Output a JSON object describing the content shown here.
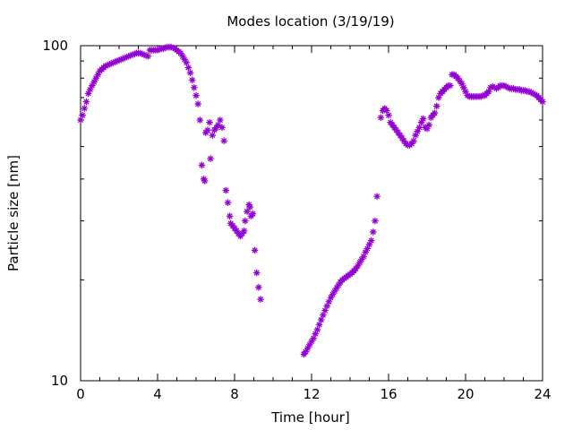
{
  "chart_data": {
    "type": "scatter",
    "title": "Modes location (3/19/19)",
    "xlabel": "Time [hour]",
    "ylabel": "Particle size [nm]",
    "xlim": [
      0,
      24
    ],
    "ylim": [
      10,
      100
    ],
    "yscale": "log",
    "grid": false,
    "legend": "none",
    "x_ticks": [
      {
        "value": 0,
        "label": "0"
      },
      {
        "value": 4,
        "label": "4"
      },
      {
        "value": 8,
        "label": "8"
      },
      {
        "value": 12,
        "label": "12"
      },
      {
        "value": 16,
        "label": "16"
      },
      {
        "value": 20,
        "label": "20"
      },
      {
        "value": 24,
        "label": "24"
      }
    ],
    "y_ticks": [
      {
        "value": 10,
        "label": "10"
      },
      {
        "value": 100,
        "label": "100"
      }
    ],
    "y_minor_ticks": [
      20,
      30,
      40,
      50,
      60,
      70,
      80,
      90
    ],
    "marker_color": "#9400d3",
    "series": [
      {
        "points": [
          [
            0.0,
            60
          ],
          [
            0.1,
            62
          ],
          [
            0.2,
            65
          ],
          [
            0.3,
            68
          ],
          [
            0.4,
            72
          ],
          [
            0.5,
            74
          ],
          [
            0.6,
            76
          ],
          [
            0.7,
            78
          ],
          [
            0.8,
            80
          ],
          [
            0.9,
            82
          ],
          [
            1.0,
            84
          ],
          [
            1.1,
            85
          ],
          [
            1.2,
            86
          ],
          [
            1.3,
            87
          ],
          [
            1.4,
            87.5
          ],
          [
            1.5,
            88
          ],
          [
            1.6,
            88.5
          ],
          [
            1.7,
            89
          ],
          [
            1.8,
            89.5
          ],
          [
            1.9,
            90
          ],
          [
            2.0,
            90.5
          ],
          [
            2.1,
            91
          ],
          [
            2.2,
            91.5
          ],
          [
            2.3,
            92
          ],
          [
            2.4,
            92.5
          ],
          [
            2.5,
            93
          ],
          [
            2.6,
            93.5
          ],
          [
            2.7,
            94
          ],
          [
            2.8,
            94.5
          ],
          [
            2.9,
            95
          ],
          [
            3.0,
            95
          ],
          [
            3.1,
            95
          ],
          [
            3.2,
            94.5
          ],
          [
            3.3,
            94
          ],
          [
            3.4,
            93.5
          ],
          [
            3.5,
            93
          ],
          [
            3.6,
            97
          ],
          [
            3.7,
            97
          ],
          [
            3.8,
            97
          ],
          [
            3.9,
            97
          ],
          [
            4.0,
            97
          ],
          [
            4.1,
            97.5
          ],
          [
            4.2,
            98
          ],
          [
            4.3,
            98
          ],
          [
            4.4,
            98.5
          ],
          [
            4.5,
            99
          ],
          [
            4.6,
            99
          ],
          [
            4.7,
            99
          ],
          [
            4.8,
            98.5
          ],
          [
            4.9,
            98
          ],
          [
            5.0,
            97
          ],
          [
            5.1,
            96
          ],
          [
            5.2,
            95
          ],
          [
            5.3,
            93
          ],
          [
            5.4,
            91
          ],
          [
            5.5,
            89
          ],
          [
            5.6,
            86
          ],
          [
            5.7,
            83
          ],
          [
            5.8,
            79
          ],
          [
            5.9,
            75
          ],
          [
            6.0,
            71
          ],
          [
            6.1,
            67
          ],
          [
            6.2,
            60
          ],
          [
            6.3,
            44
          ],
          [
            6.4,
            40
          ],
          [
            6.45,
            39.5
          ],
          [
            6.5,
            55
          ],
          [
            6.6,
            56
          ],
          [
            6.7,
            59
          ],
          [
            6.75,
            46
          ],
          [
            6.85,
            54
          ],
          [
            6.95,
            56
          ],
          [
            7.05,
            57
          ],
          [
            7.15,
            58
          ],
          [
            7.25,
            60
          ],
          [
            7.35,
            57
          ],
          [
            7.45,
            52
          ],
          [
            7.55,
            37
          ],
          [
            7.65,
            34
          ],
          [
            7.75,
            31
          ],
          [
            7.8,
            29.5
          ],
          [
            7.9,
            29
          ],
          [
            8.0,
            28.5
          ],
          [
            8.1,
            28
          ],
          [
            8.2,
            27.5
          ],
          [
            8.3,
            27
          ],
          [
            8.4,
            27.5
          ],
          [
            8.5,
            28
          ],
          [
            8.55,
            30
          ],
          [
            8.65,
            32
          ],
          [
            8.75,
            33.5
          ],
          [
            8.8,
            33
          ],
          [
            8.85,
            31
          ],
          [
            8.95,
            31.5
          ],
          [
            9.05,
            24.5
          ],
          [
            9.15,
            21
          ],
          [
            9.25,
            19
          ],
          [
            9.35,
            17.5
          ],
          [
            11.6,
            12
          ],
          [
            11.7,
            12.2
          ],
          [
            11.8,
            12.5
          ],
          [
            11.9,
            12.8
          ],
          [
            12.0,
            13.1
          ],
          [
            12.1,
            13.4
          ],
          [
            12.2,
            13.8
          ],
          [
            12.3,
            14.2
          ],
          [
            12.4,
            14.7
          ],
          [
            12.5,
            15.2
          ],
          [
            12.6,
            15.7
          ],
          [
            12.7,
            16.2
          ],
          [
            12.8,
            16.7
          ],
          [
            12.9,
            17.2
          ],
          [
            13.0,
            17.7
          ],
          [
            13.1,
            18.1
          ],
          [
            13.2,
            18.5
          ],
          [
            13.3,
            18.9
          ],
          [
            13.4,
            19.3
          ],
          [
            13.5,
            19.7
          ],
          [
            13.6,
            20
          ],
          [
            13.7,
            20.2
          ],
          [
            13.8,
            20.4
          ],
          [
            13.9,
            20.6
          ],
          [
            14.0,
            20.8
          ],
          [
            14.1,
            21
          ],
          [
            14.2,
            21.3
          ],
          [
            14.3,
            21.6
          ],
          [
            14.4,
            22
          ],
          [
            14.5,
            22.5
          ],
          [
            14.6,
            23
          ],
          [
            14.7,
            23.5
          ],
          [
            14.8,
            24.2
          ],
          [
            14.9,
            24.8
          ],
          [
            15.0,
            25.5
          ],
          [
            15.1,
            26.2
          ],
          [
            15.2,
            27.8
          ],
          [
            15.3,
            30
          ],
          [
            15.4,
            35.5
          ],
          [
            15.6,
            61
          ],
          [
            15.7,
            64
          ],
          [
            15.8,
            65
          ],
          [
            15.9,
            64
          ],
          [
            16.0,
            62
          ],
          [
            16.1,
            59
          ],
          [
            16.2,
            58
          ],
          [
            16.3,
            57
          ],
          [
            16.4,
            56
          ],
          [
            16.5,
            55
          ],
          [
            16.6,
            54
          ],
          [
            16.7,
            53
          ],
          [
            16.8,
            52
          ],
          [
            16.9,
            51
          ],
          [
            17.0,
            50.5
          ],
          [
            17.1,
            50.5
          ],
          [
            17.2,
            51
          ],
          [
            17.3,
            52
          ],
          [
            17.4,
            54
          ],
          [
            17.5,
            55.5
          ],
          [
            17.6,
            57
          ],
          [
            17.7,
            59
          ],
          [
            17.8,
            60.5
          ],
          [
            17.9,
            57
          ],
          [
            18.0,
            56.5
          ],
          [
            18.1,
            58
          ],
          [
            18.2,
            61
          ],
          [
            18.3,
            62
          ],
          [
            18.4,
            63
          ],
          [
            18.5,
            66
          ],
          [
            18.6,
            70
          ],
          [
            18.7,
            72
          ],
          [
            18.8,
            73
          ],
          [
            18.9,
            74
          ],
          [
            19.0,
            75
          ],
          [
            19.1,
            76
          ],
          [
            19.2,
            76
          ],
          [
            19.3,
            82
          ],
          [
            19.4,
            82
          ],
          [
            19.5,
            81
          ],
          [
            19.6,
            80
          ],
          [
            19.7,
            78.5
          ],
          [
            19.8,
            77
          ],
          [
            19.9,
            75
          ],
          [
            20.0,
            73
          ],
          [
            20.1,
            71
          ],
          [
            20.2,
            70.5
          ],
          [
            20.3,
            70.5
          ],
          [
            20.4,
            70.5
          ],
          [
            20.5,
            70.5
          ],
          [
            20.6,
            70.5
          ],
          [
            20.7,
            70.5
          ],
          [
            20.8,
            70.5
          ],
          [
            20.9,
            71
          ],
          [
            21.0,
            71
          ],
          [
            21.1,
            72
          ],
          [
            21.2,
            73
          ],
          [
            21.3,
            75
          ],
          [
            21.4,
            75.5
          ],
          [
            21.5,
            75
          ],
          [
            21.6,
            74.5
          ],
          [
            21.7,
            75
          ],
          [
            21.8,
            76
          ],
          [
            21.9,
            76
          ],
          [
            22.0,
            76
          ],
          [
            22.1,
            75.5
          ],
          [
            22.2,
            75
          ],
          [
            22.3,
            74.5
          ],
          [
            22.4,
            74.5
          ],
          [
            22.5,
            74.5
          ],
          [
            22.6,
            74
          ],
          [
            22.7,
            74
          ],
          [
            22.8,
            74
          ],
          [
            22.9,
            73.5
          ],
          [
            23.0,
            73.5
          ],
          [
            23.1,
            73.5
          ],
          [
            23.2,
            73
          ],
          [
            23.3,
            73
          ],
          [
            23.4,
            72.5
          ],
          [
            23.5,
            72
          ],
          [
            23.6,
            71.5
          ],
          [
            23.7,
            71
          ],
          [
            23.8,
            70
          ],
          [
            23.9,
            69
          ],
          [
            24.0,
            68
          ]
        ]
      }
    ]
  }
}
